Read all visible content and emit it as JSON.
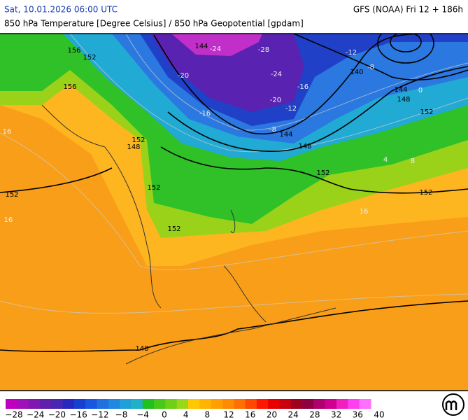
{
  "header": {
    "datetime": "Sat, 10.01.2026 06:00 UTC",
    "model": "GFS (NOAA) Fri 12 + 186h",
    "parameter": "850 hPa Temperature [Degree Celsius] / 850 hPa Geopotential [gpdam]"
  },
  "geopotential_labels": [
    "144",
    "140",
    "144",
    "148",
    "152",
    "152",
    "152",
    "152",
    "148",
    "152",
    "152",
    "152",
    "148",
    "144",
    "156",
    "152",
    "156",
    "148"
  ],
  "temperature_labels": [
    "-28",
    "-24",
    "-24",
    "-20",
    "-16",
    "-12",
    "-8",
    "-16",
    "-12",
    "-8",
    "0",
    "4",
    "8",
    "16",
    "16",
    "16",
    "-20"
  ],
  "colorbar": {
    "colors": [
      "#c000c0",
      "#a010b8",
      "#8018b0",
      "#6020a8",
      "#4828b0",
      "#2828c0",
      "#1840d0",
      "#1858e0",
      "#2070e0",
      "#2088e0",
      "#20a0d8",
      "#20b0c8",
      "#20c020",
      "#48c818",
      "#70d018",
      "#98d818",
      "#ffc800",
      "#ffb400",
      "#ffa000",
      "#ff8c00",
      "#ff7000",
      "#ff4800",
      "#ff1800",
      "#e80000",
      "#c80010",
      "#a00020",
      "#900040",
      "#b00070",
      "#d00090",
      "#f020c0",
      "#ff40f0",
      "#ff70ff"
    ],
    "labels": [
      "−28",
      "−24",
      "−20",
      "−16",
      "−12",
      "−8",
      "−4",
      "0",
      "4",
      "8",
      "12",
      "16",
      "20",
      "24",
      "28",
      "32",
      "36",
      "40"
    ]
  }
}
